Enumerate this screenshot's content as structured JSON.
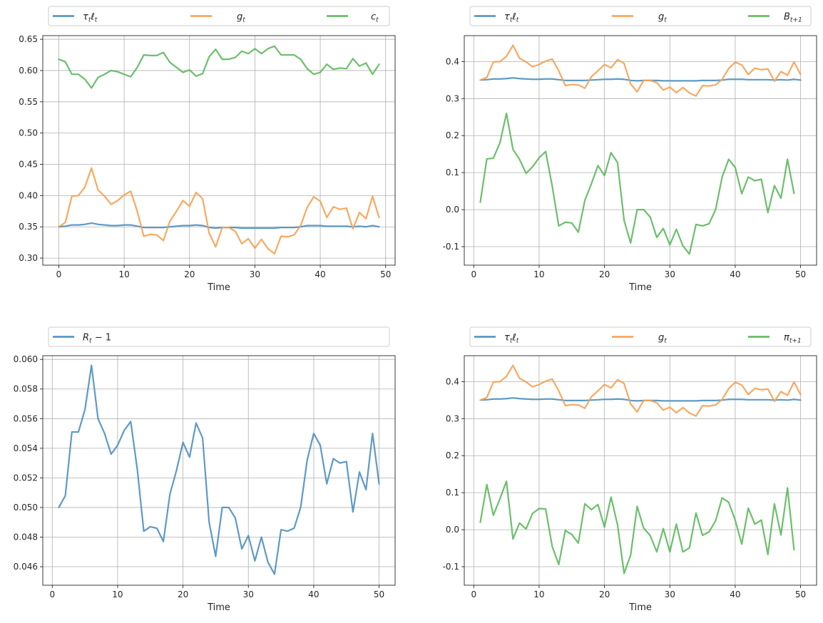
{
  "colors": {
    "blue": "#4d8fc0",
    "orange": "#f7a04f",
    "green": "#5cb85c",
    "grid": "#b0b0b0",
    "axis": "#262626"
  },
  "chart_data": [
    {
      "type": "line",
      "xlabel": "Time",
      "xlim": [
        -2.45,
        51.45
      ],
      "ylim": [
        0.2887,
        0.6558
      ],
      "xticks": [
        0,
        10,
        20,
        30,
        40,
        50
      ],
      "yticks": [
        0.3,
        0.35,
        0.4,
        0.45,
        0.5,
        0.55,
        0.6,
        0.65
      ],
      "ytick_decimals": 2,
      "legend": {
        "placement": "top",
        "entries": [
          {
            "base": "τ",
            "sub": "t",
            "base2": "ℓ",
            "sub2": "t"
          },
          {
            "base": "g",
            "sub": "t"
          },
          {
            "base": "c",
            "sub": "t"
          }
        ]
      },
      "series": [
        {
          "name": "τtℓt",
          "color": "blue",
          "x0": 0,
          "values": [
            0.35,
            0.351,
            0.353,
            0.353,
            0.354,
            0.356,
            0.354,
            0.353,
            0.352,
            0.352,
            0.353,
            0.353,
            0.351,
            0.349,
            0.349,
            0.349,
            0.349,
            0.35,
            0.351,
            0.352,
            0.352,
            0.353,
            0.352,
            0.349,
            0.348,
            0.349,
            0.349,
            0.349,
            0.348,
            0.348,
            0.348,
            0.348,
            0.348,
            0.348,
            0.349,
            0.349,
            0.349,
            0.35,
            0.352,
            0.352,
            0.352,
            0.351,
            0.351,
            0.351,
            0.351,
            0.35,
            0.351,
            0.35,
            0.352,
            0.35
          ]
        },
        {
          "name": "gt",
          "color": "orange",
          "x0": 0,
          "values": [
            0.35,
            0.357,
            0.399,
            0.4,
            0.414,
            0.444,
            0.409,
            0.399,
            0.386,
            0.392,
            0.401,
            0.407,
            0.375,
            0.335,
            0.338,
            0.337,
            0.328,
            0.359,
            0.375,
            0.392,
            0.383,
            0.405,
            0.395,
            0.34,
            0.318,
            0.349,
            0.349,
            0.343,
            0.323,
            0.331,
            0.316,
            0.33,
            0.315,
            0.307,
            0.335,
            0.334,
            0.337,
            0.352,
            0.381,
            0.398,
            0.391,
            0.365,
            0.382,
            0.378,
            0.38,
            0.347,
            0.373,
            0.363,
            0.399,
            0.365
          ]
        },
        {
          "name": "ct",
          "color": "green",
          "x0": 0,
          "values": [
            0.618,
            0.614,
            0.594,
            0.594,
            0.586,
            0.572,
            0.589,
            0.594,
            0.6,
            0.598,
            0.594,
            0.59,
            0.605,
            0.625,
            0.624,
            0.624,
            0.629,
            0.613,
            0.605,
            0.597,
            0.601,
            0.591,
            0.595,
            0.622,
            0.634,
            0.618,
            0.618,
            0.621,
            0.631,
            0.627,
            0.635,
            0.627,
            0.635,
            0.639,
            0.625,
            0.625,
            0.625,
            0.618,
            0.603,
            0.594,
            0.597,
            0.61,
            0.602,
            0.604,
            0.603,
            0.619,
            0.607,
            0.612,
            0.594,
            0.61
          ]
        }
      ]
    },
    {
      "type": "line",
      "xlabel": "Time",
      "xlim": [
        -1.45,
        52.45
      ],
      "ylim": [
        -0.15,
        0.47
      ],
      "xticks": [
        0,
        10,
        20,
        30,
        40,
        50
      ],
      "yticks": [
        -0.1,
        0.0,
        0.1,
        0.2,
        0.3,
        0.4
      ],
      "ytick_decimals": 1,
      "legend": {
        "placement": "top",
        "entries": [
          {
            "base": "τ",
            "sub": "t",
            "base2": "ℓ",
            "sub2": "t"
          },
          {
            "base": "g",
            "sub": "t"
          },
          {
            "base": "B",
            "sub": "t+1"
          }
        ]
      },
      "series": [
        {
          "name": "τtℓt",
          "color": "blue",
          "x0": 1,
          "values": [
            0.35,
            0.351,
            0.353,
            0.353,
            0.354,
            0.356,
            0.354,
            0.353,
            0.352,
            0.352,
            0.353,
            0.353,
            0.351,
            0.349,
            0.349,
            0.349,
            0.349,
            0.35,
            0.351,
            0.352,
            0.352,
            0.353,
            0.352,
            0.349,
            0.348,
            0.349,
            0.349,
            0.349,
            0.348,
            0.348,
            0.348,
            0.348,
            0.348,
            0.348,
            0.349,
            0.349,
            0.349,
            0.35,
            0.352,
            0.352,
            0.352,
            0.351,
            0.351,
            0.351,
            0.351,
            0.35,
            0.351,
            0.35,
            0.352,
            0.35
          ]
        },
        {
          "name": "gt",
          "color": "orange",
          "x0": 1,
          "values": [
            0.35,
            0.357,
            0.399,
            0.4,
            0.414,
            0.444,
            0.409,
            0.399,
            0.386,
            0.392,
            0.401,
            0.407,
            0.375,
            0.335,
            0.338,
            0.337,
            0.328,
            0.359,
            0.375,
            0.392,
            0.383,
            0.405,
            0.395,
            0.34,
            0.318,
            0.349,
            0.349,
            0.343,
            0.323,
            0.331,
            0.316,
            0.33,
            0.315,
            0.307,
            0.335,
            0.334,
            0.337,
            0.352,
            0.381,
            0.398,
            0.391,
            0.365,
            0.382,
            0.378,
            0.38,
            0.347,
            0.373,
            0.363,
            0.399,
            0.365
          ]
        },
        {
          "name": "Bt+1",
          "color": "green",
          "x0": 1,
          "values": [
            0.02,
            0.137,
            0.139,
            0.18,
            0.26,
            0.163,
            0.136,
            0.098,
            0.116,
            0.14,
            0.157,
            0.064,
            -0.044,
            -0.034,
            -0.036,
            -0.061,
            0.025,
            0.07,
            0.119,
            0.092,
            0.154,
            0.127,
            -0.029,
            -0.09,
            0.0,
            0.0,
            -0.02,
            -0.075,
            -0.051,
            -0.095,
            -0.053,
            -0.098,
            -0.12,
            -0.04,
            -0.044,
            -0.038,
            0.0,
            0.088,
            0.136,
            0.114,
            0.043,
            0.088,
            0.078,
            0.082,
            -0.008,
            0.065,
            0.031,
            0.136,
            0.044
          ]
        }
      ]
    },
    {
      "type": "line",
      "xlabel": "Time",
      "xlim": [
        -1.45,
        52.45
      ],
      "ylim": [
        0.04475,
        0.06025
      ],
      "xticks": [
        0,
        10,
        20,
        30,
        40,
        50
      ],
      "yticks": [
        0.046,
        0.048,
        0.05,
        0.052,
        0.054,
        0.056,
        0.058,
        0.06
      ],
      "ytick_decimals": 3,
      "legend": {
        "placement": "top",
        "entries": [
          {
            "base": "R",
            "sub": "t",
            "tail": " − 1"
          }
        ]
      },
      "series": [
        {
          "name": "Rt-1",
          "color": "blue",
          "x0": 1,
          "values": [
            0.05,
            0.0508,
            0.0551,
            0.0551,
            0.0566,
            0.0596,
            0.056,
            0.055,
            0.0536,
            0.0542,
            0.0552,
            0.0558,
            0.0526,
            0.0484,
            0.0487,
            0.0486,
            0.0477,
            0.0509,
            0.0525,
            0.0544,
            0.0534,
            0.0557,
            0.0547,
            0.049,
            0.0467,
            0.05,
            0.05,
            0.0493,
            0.0472,
            0.0481,
            0.0464,
            0.048,
            0.0463,
            0.0455,
            0.0485,
            0.0484,
            0.0486,
            0.05,
            0.0532,
            0.055,
            0.0542,
            0.0516,
            0.0533,
            0.053,
            0.0531,
            0.0497,
            0.0524,
            0.0512,
            0.055,
            0.0516
          ]
        }
      ]
    },
    {
      "type": "line",
      "xlabel": "Time",
      "xlim": [
        -1.45,
        52.45
      ],
      "ylim": [
        -0.15,
        0.47
      ],
      "xticks": [
        0,
        10,
        20,
        30,
        40,
        50
      ],
      "yticks": [
        -0.1,
        0.0,
        0.1,
        0.2,
        0.3,
        0.4
      ],
      "ytick_decimals": 1,
      "legend": {
        "placement": "top",
        "entries": [
          {
            "base": "τ",
            "sub": "t",
            "base2": "ℓ",
            "sub2": "t"
          },
          {
            "base": "g",
            "sub": "t"
          },
          {
            "base": "π",
            "sub": "t+1"
          }
        ]
      },
      "series": [
        {
          "name": "τtℓt",
          "color": "blue",
          "x0": 1,
          "values": [
            0.35,
            0.351,
            0.353,
            0.353,
            0.354,
            0.356,
            0.354,
            0.353,
            0.352,
            0.352,
            0.353,
            0.353,
            0.351,
            0.349,
            0.349,
            0.349,
            0.349,
            0.35,
            0.351,
            0.352,
            0.352,
            0.353,
            0.352,
            0.349,
            0.348,
            0.349,
            0.349,
            0.349,
            0.348,
            0.348,
            0.348,
            0.348,
            0.348,
            0.348,
            0.349,
            0.349,
            0.349,
            0.35,
            0.352,
            0.352,
            0.352,
            0.351,
            0.351,
            0.351,
            0.351,
            0.35,
            0.351,
            0.35,
            0.352,
            0.35
          ]
        },
        {
          "name": "gt",
          "color": "orange",
          "x0": 1,
          "values": [
            0.35,
            0.357,
            0.399,
            0.4,
            0.414,
            0.444,
            0.409,
            0.399,
            0.386,
            0.392,
            0.401,
            0.407,
            0.375,
            0.335,
            0.338,
            0.337,
            0.328,
            0.359,
            0.375,
            0.392,
            0.383,
            0.405,
            0.395,
            0.34,
            0.318,
            0.349,
            0.349,
            0.343,
            0.323,
            0.331,
            0.316,
            0.33,
            0.315,
            0.307,
            0.335,
            0.334,
            0.337,
            0.352,
            0.381,
            0.398,
            0.391,
            0.365,
            0.382,
            0.378,
            0.38,
            0.347,
            0.373,
            0.363,
            0.399,
            0.365
          ]
        },
        {
          "name": "πt+1",
          "color": "green",
          "x0": 1,
          "values": [
            0.02,
            0.122,
            0.039,
            0.083,
            0.131,
            -0.025,
            0.018,
            0.002,
            0.044,
            0.057,
            0.056,
            -0.045,
            -0.094,
            -0.002,
            -0.013,
            -0.036,
            0.07,
            0.054,
            0.068,
            0.007,
            0.088,
            0.013,
            -0.118,
            -0.069,
            0.063,
            0.004,
            -0.016,
            -0.06,
            0.003,
            -0.06,
            0.015,
            -0.06,
            -0.049,
            0.045,
            -0.015,
            -0.006,
            0.024,
            0.086,
            0.074,
            0.026,
            -0.039,
            0.058,
            0.015,
            0.026,
            -0.067,
            0.07,
            -0.014,
            0.113,
            -0.054
          ]
        }
      ]
    }
  ]
}
